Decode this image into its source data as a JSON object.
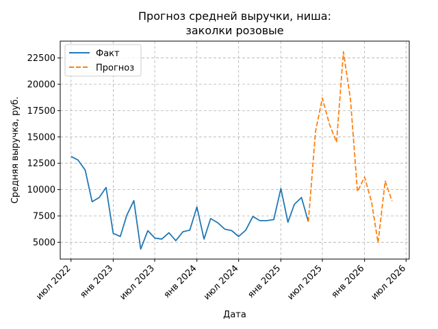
{
  "chart_data": {
    "type": "line",
    "title_lines": [
      "Прогноз средней выручки, ниша:",
      "заколки розовые"
    ],
    "xlabel": "Дата",
    "ylabel": "Средняя выручка, руб.",
    "ylim": [
      3400,
      24100
    ],
    "yticks": [
      5000,
      7500,
      10000,
      12500,
      15000,
      17500,
      20000,
      22500
    ],
    "xlim": [
      "2022-05-15",
      "2026-07-15"
    ],
    "xticks": [
      {
        "date": "2022-07-01",
        "label": "июл 2022"
      },
      {
        "date": "2023-01-01",
        "label": "янв 2023"
      },
      {
        "date": "2023-07-01",
        "label": "июл 2023"
      },
      {
        "date": "2024-01-01",
        "label": "янв 2024"
      },
      {
        "date": "2024-07-01",
        "label": "июл 2024"
      },
      {
        "date": "2025-01-01",
        "label": "янв 2025"
      },
      {
        "date": "2025-07-01",
        "label": "июл 2025"
      },
      {
        "date": "2026-01-01",
        "label": "янв 2026"
      },
      {
        "date": "2026-07-01",
        "label": "июл 2026"
      }
    ],
    "grid": true,
    "legend_position": "top-left",
    "series": [
      {
        "name": "Факт",
        "color": "#1f77b4",
        "style": "solid",
        "points": [
          [
            "2022-07-01",
            13150
          ],
          [
            "2022-08-01",
            12800
          ],
          [
            "2022-09-01",
            11850
          ],
          [
            "2022-10-01",
            8850
          ],
          [
            "2022-11-01",
            9250
          ],
          [
            "2022-12-01",
            10200
          ],
          [
            "2023-01-01",
            5850
          ],
          [
            "2023-02-01",
            5550
          ],
          [
            "2023-03-01",
            7550
          ],
          [
            "2023-04-01",
            8950
          ],
          [
            "2023-05-01",
            4350
          ],
          [
            "2023-06-01",
            6100
          ],
          [
            "2023-07-01",
            5400
          ],
          [
            "2023-08-01",
            5300
          ],
          [
            "2023-09-01",
            5900
          ],
          [
            "2023-10-01",
            5150
          ],
          [
            "2023-11-01",
            6000
          ],
          [
            "2023-12-01",
            6150
          ],
          [
            "2024-01-01",
            8350
          ],
          [
            "2024-02-01",
            5300
          ],
          [
            "2024-03-01",
            7250
          ],
          [
            "2024-04-01",
            6850
          ],
          [
            "2024-05-01",
            6250
          ],
          [
            "2024-06-01",
            6100
          ],
          [
            "2024-07-01",
            5550
          ],
          [
            "2024-08-01",
            6150
          ],
          [
            "2024-09-01",
            7450
          ],
          [
            "2024-10-01",
            7050
          ],
          [
            "2024-11-01",
            7050
          ],
          [
            "2024-12-01",
            7150
          ],
          [
            "2025-01-01",
            10100
          ],
          [
            "2025-02-01",
            6900
          ],
          [
            "2025-03-01",
            8600
          ],
          [
            "2025-04-01",
            9250
          ],
          [
            "2025-05-01",
            6950
          ]
        ]
      },
      {
        "name": "Прогноз",
        "color": "#ff7f0e",
        "style": "dashed",
        "points": [
          [
            "2025-05-01",
            6950
          ],
          [
            "2025-06-01",
            15500
          ],
          [
            "2025-07-01",
            18700
          ],
          [
            "2025-08-01",
            16200
          ],
          [
            "2025-09-01",
            14500
          ],
          [
            "2025-10-01",
            23100
          ],
          [
            "2025-11-01",
            18500
          ],
          [
            "2025-12-01",
            9800
          ],
          [
            "2026-01-01",
            11200
          ],
          [
            "2026-02-01",
            8800
          ],
          [
            "2026-03-01",
            4950
          ],
          [
            "2026-04-01",
            10800
          ],
          [
            "2026-05-01",
            8900
          ]
        ]
      }
    ]
  }
}
